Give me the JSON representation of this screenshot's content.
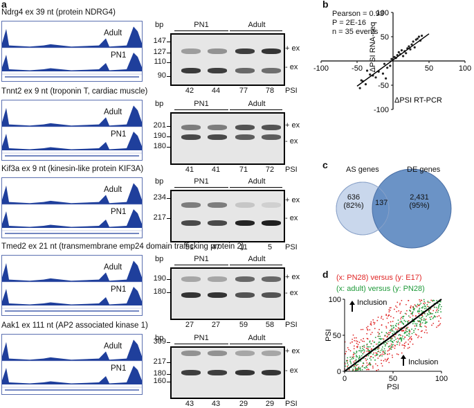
{
  "panel_labels": {
    "a": "a",
    "b": "b",
    "c": "c",
    "d": "d"
  },
  "rows": [
    {
      "title": "Ndrg4 ex 39 nt (protein NDRG4)",
      "label_top": "Adult",
      "label_bottom": "PN1",
      "ticks": [
        "147",
        "127",
        "110",
        "90"
      ],
      "marks": [
        "+ ex",
        "- ex"
      ],
      "psi": [
        "42",
        "44",
        "77",
        "78"
      ],
      "psi_label": "PSI",
      "bp": "bp",
      "group1": "PN1",
      "group2": "Adult",
      "band_intensity": [
        0.35,
        0.4,
        0.8,
        0.85
      ]
    },
    {
      "title": "Tnnt2 ex 9 nt (troponin T, cardiac muscle)",
      "label_top": "Adult",
      "label_bottom": "PN1",
      "ticks": [
        "201",
        "190",
        "180"
      ],
      "marks": [
        "+ ex",
        "- ex"
      ],
      "psi": [
        "41",
        "41",
        "71",
        "72"
      ],
      "psi_label": "PSI",
      "bp": "bp",
      "group1": "PN1",
      "group2": "Adult",
      "band_intensity": [
        0.5,
        0.5,
        0.7,
        0.7
      ]
    },
    {
      "title": "Kif3a ex 9 nt (kinesin-like protein KIF3A)",
      "label_top": "Adult",
      "label_bottom": "PN1",
      "ticks": [
        "234",
        "217"
      ],
      "marks": [
        "+ ex",
        "- ex"
      ],
      "psi": [
        "51",
        "47",
        "11",
        "5"
      ],
      "psi_label": "PSI",
      "bp": "bp",
      "group1": "PN1",
      "group2": "Adult",
      "band_intensity": [
        0.5,
        0.5,
        0.15,
        0.08
      ]
    },
    {
      "title": "Tmed2 ex 21 nt (transmembrane emp24 domain trafficking protein 2)",
      "label_top": "Adult",
      "label_bottom": "PN1",
      "ticks": [
        "190",
        "180"
      ],
      "marks": [
        "+ ex",
        "- ex"
      ],
      "psi": [
        "27",
        "27",
        "59",
        "58"
      ],
      "psi_label": "PSI",
      "bp": "bp",
      "group1": "PN1",
      "group2": "Adult",
      "band_intensity": [
        0.3,
        0.3,
        0.6,
        0.6
      ]
    },
    {
      "title": "Aak1 ex 111 nt (AP2 associated kinase 1)",
      "label_top": "Adult",
      "label_bottom": "PN1",
      "ticks": [
        "309",
        "217",
        "180",
        "160"
      ],
      "marks": [
        "+ ex",
        "- ex"
      ],
      "psi": [
        "43",
        "43",
        "29",
        "29"
      ],
      "psi_label": "PSI",
      "bp": "bp",
      "group1": "PN1",
      "group2": "Adult",
      "band_intensity": [
        0.4,
        0.4,
        0.3,
        0.3
      ]
    }
  ],
  "panel_b": {
    "stats": [
      "Pearson = 0.93",
      "P = 2E-16",
      "n = 35 events"
    ],
    "chart_data": {
      "type": "scatter",
      "xlabel": "ΔPSI RT-PCR",
      "ylabel": "ΔPSI RNA-seq",
      "xlim": [
        -100,
        100
      ],
      "ylim": [
        -100,
        100
      ],
      "xticks": [
        "-100",
        "-50",
        "50",
        "100"
      ],
      "yticks": [
        "100",
        "50",
        "-50",
        "-100"
      ],
      "x": [
        -42,
        -38,
        -32,
        -28,
        -24,
        -20,
        -14,
        -10,
        -8,
        -4,
        -2,
        2,
        4,
        6,
        8,
        10,
        12,
        16,
        18,
        20,
        22,
        24,
        26,
        28,
        30,
        32,
        34,
        36,
        38,
        -46,
        -44,
        -36,
        -12,
        14,
        40
      ],
      "y": [
        -42,
        -48,
        -28,
        -30,
        -34,
        -22,
        -26,
        -36,
        -14,
        -10,
        4,
        8,
        6,
        12,
        18,
        14,
        22,
        20,
        16,
        26,
        30,
        24,
        34,
        40,
        28,
        44,
        46,
        50,
        42,
        -56,
        -40,
        -20,
        -6,
        10,
        52
      ],
      "fit_line": {
        "x": [
          -50,
          50
        ],
        "y": [
          -52,
          56
        ]
      }
    }
  },
  "panel_c": {
    "set_a_label": "AS genes",
    "set_b_label": "DE genes",
    "only_a": "636",
    "only_a_pct": "(82%)",
    "overlap": "137",
    "only_b": "2,431",
    "only_b_pct": "(95%)"
  },
  "panel_d": {
    "legend1": "(x: PN28) versus (y: E17)",
    "legend2": "(x: adult) versus (y: PN28)",
    "color1": "#e02424",
    "color2": "#1f9a3a",
    "inclusion_top": "Inclusion",
    "inclusion_bottom": "Inclusion",
    "chart_data": {
      "type": "scatter",
      "xlabel": "PSI",
      "ylabel": "PSI",
      "xlim": [
        0,
        100
      ],
      "ylim": [
        0,
        100
      ],
      "xticks": [
        "0",
        "50",
        "100"
      ],
      "yticks": [
        "100",
        "50",
        "0"
      ],
      "series": [
        {
          "name": "(x: PN28) versus (y: E17)"
        },
        {
          "name": "(x: adult) versus (y: PN28)"
        }
      ]
    }
  }
}
